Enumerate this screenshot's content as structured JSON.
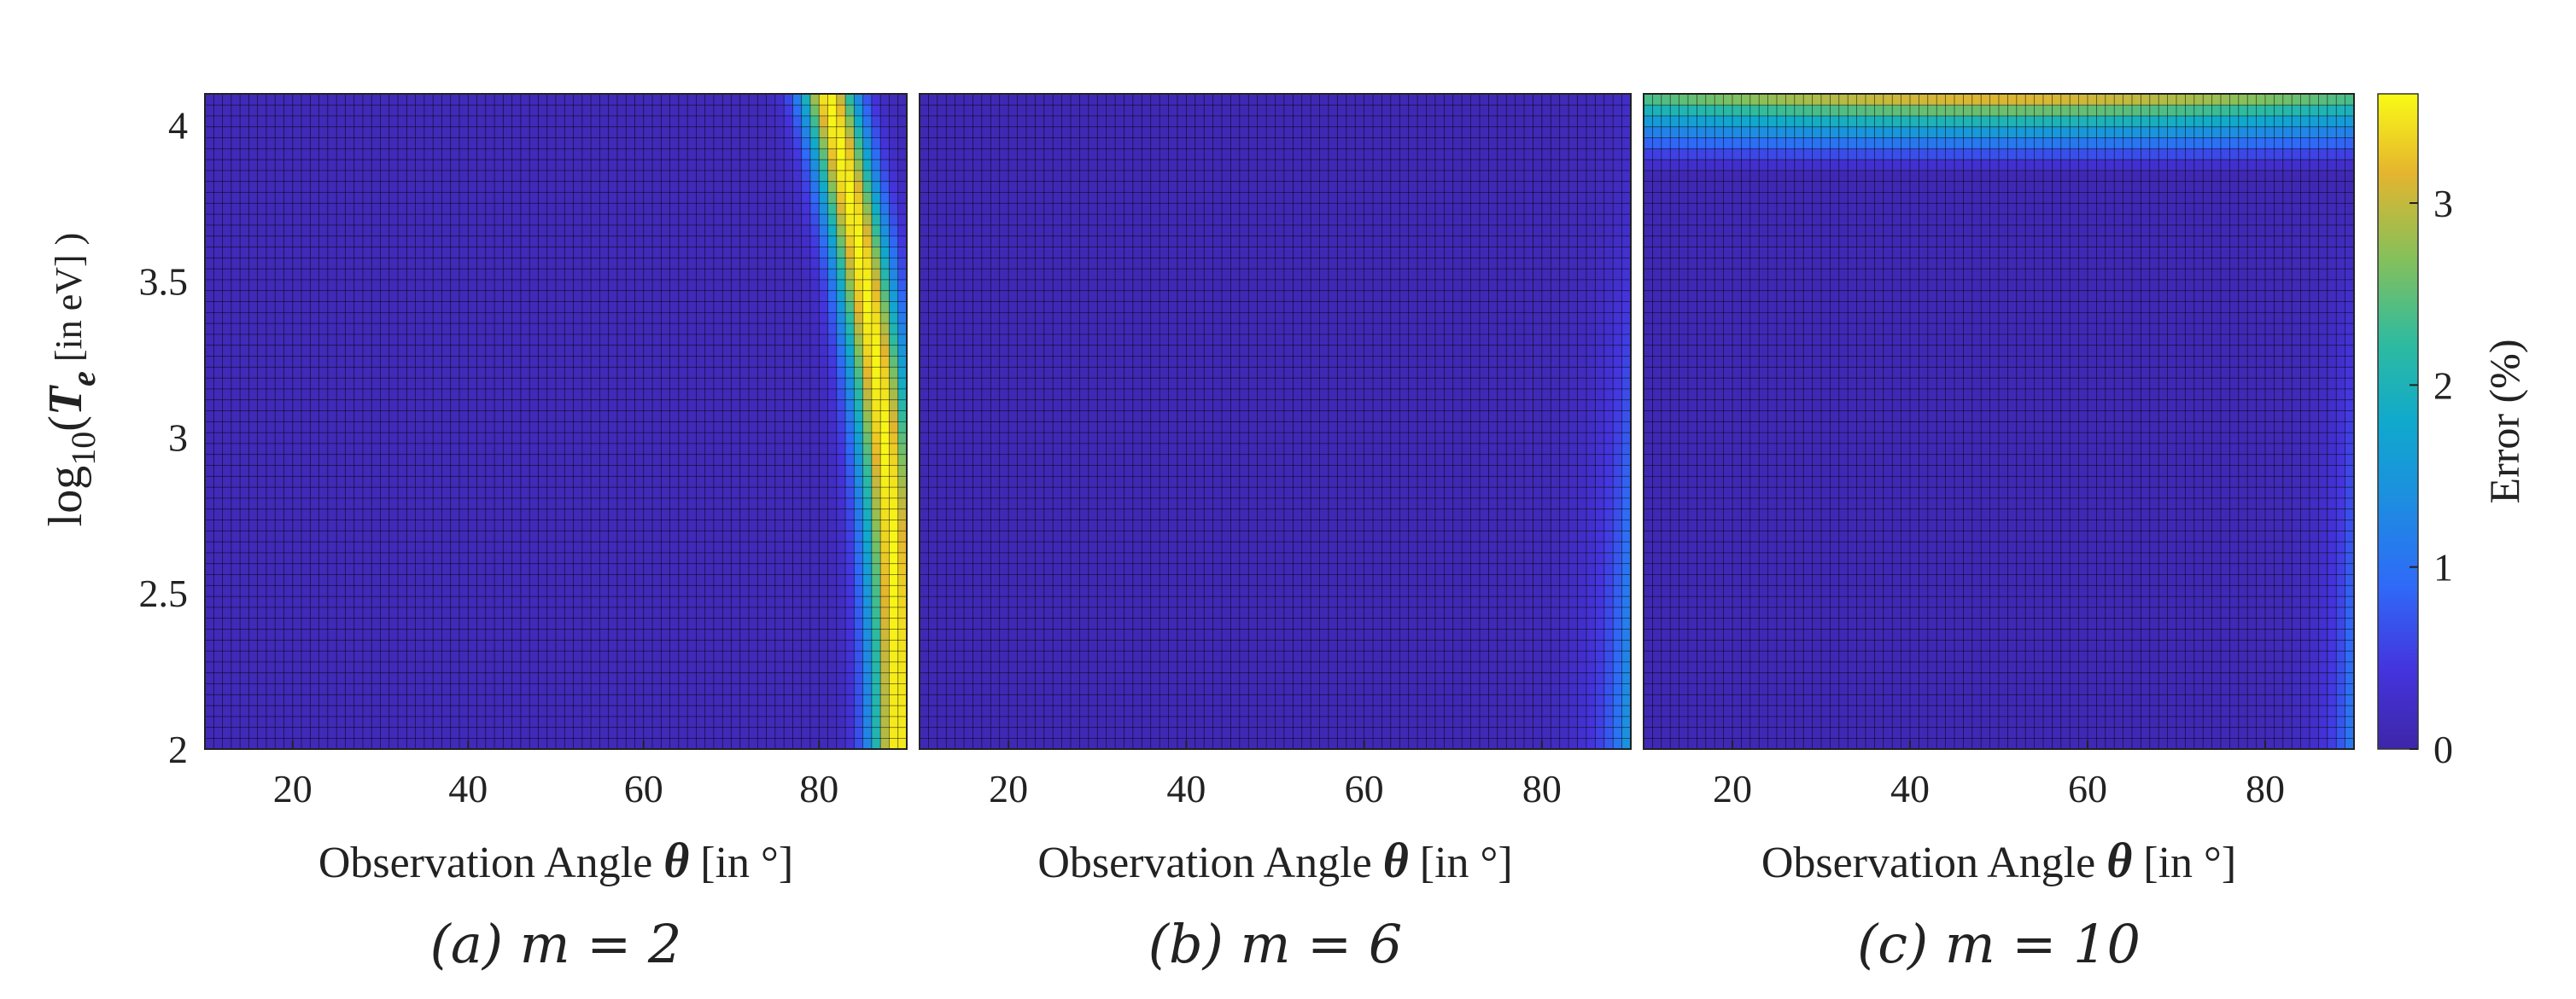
{
  "figure": {
    "ylabel_parts": {
      "prefix": "log",
      "sub": "10",
      "open": "(",
      "var": "T",
      "var_sub": "e",
      "unit": " [in eV] )"
    },
    "xlabel_parts": {
      "text": "Observation Angle ",
      "symbol": "θ",
      "unit": " [in °]"
    },
    "colorbar_label": "Error (%)"
  },
  "chart_data": [
    {
      "type": "heatmap",
      "caption": "(a)  m = 2",
      "m": 2,
      "xlabel": "Observation Angle θ [in °]",
      "ylabel": "log10(Te [in eV] )",
      "xlim": [
        10,
        90
      ],
      "ylim": [
        2,
        4.1
      ],
      "xticks": [
        20,
        40,
        60,
        80
      ],
      "yticks": [
        2,
        2.5,
        3,
        3.5,
        4
      ],
      "colorbar": {
        "range": [
          0,
          3.6
        ],
        "ticks": [
          0,
          1,
          2,
          3
        ],
        "label": "Error (%)",
        "colormap": "parula"
      },
      "regions": [
        {
          "description": "near zero error over most of domain",
          "x_range": [
            10,
            75
          ],
          "y_range": [
            2,
            4.1
          ],
          "error": 0.1
        },
        {
          "description": "high-error ridge near θ ≈ 88° at low Te, bending to θ ≈ 80–85° at high Te",
          "peak_error": 3.5
        }
      ]
    },
    {
      "type": "heatmap",
      "caption": "(b)  m = 6",
      "m": 6,
      "xlabel": "Observation Angle θ [in °]",
      "xlim": [
        10,
        90
      ],
      "ylim": [
        2,
        4.1
      ],
      "xticks": [
        20,
        40,
        60,
        80
      ],
      "colorbar": {
        "range": [
          0,
          3.6
        ],
        "ticks": [
          0,
          1,
          2,
          3
        ],
        "label": "Error (%)",
        "colormap": "parula"
      },
      "regions": [
        {
          "description": "near zero error over most of domain",
          "error": 0.1
        },
        {
          "description": "moderate error strip near θ ≈ 87–90°",
          "peak_error": 1.7
        }
      ]
    },
    {
      "type": "heatmap",
      "caption": "(c) m = 10",
      "m": 10,
      "xlabel": "Observation Angle θ [in °]",
      "xlim": [
        10,
        90
      ],
      "ylim": [
        2,
        4.1
      ],
      "xticks": [
        20,
        40,
        60,
        80
      ],
      "colorbar": {
        "range": [
          0,
          3.6
        ],
        "ticks": [
          0,
          1,
          2,
          3
        ],
        "label": "Error (%)",
        "colormap": "parula"
      },
      "regions": [
        {
          "description": "near zero error over most of domain",
          "error": 0.1
        },
        {
          "description": "high-error band at top (log10 Te > 3.85), peaking at 4.1",
          "peak_error": 3.4
        },
        {
          "description": "small error strip near θ ≈ 88–90° at low Te",
          "peak_error": 1.3
        }
      ]
    }
  ]
}
